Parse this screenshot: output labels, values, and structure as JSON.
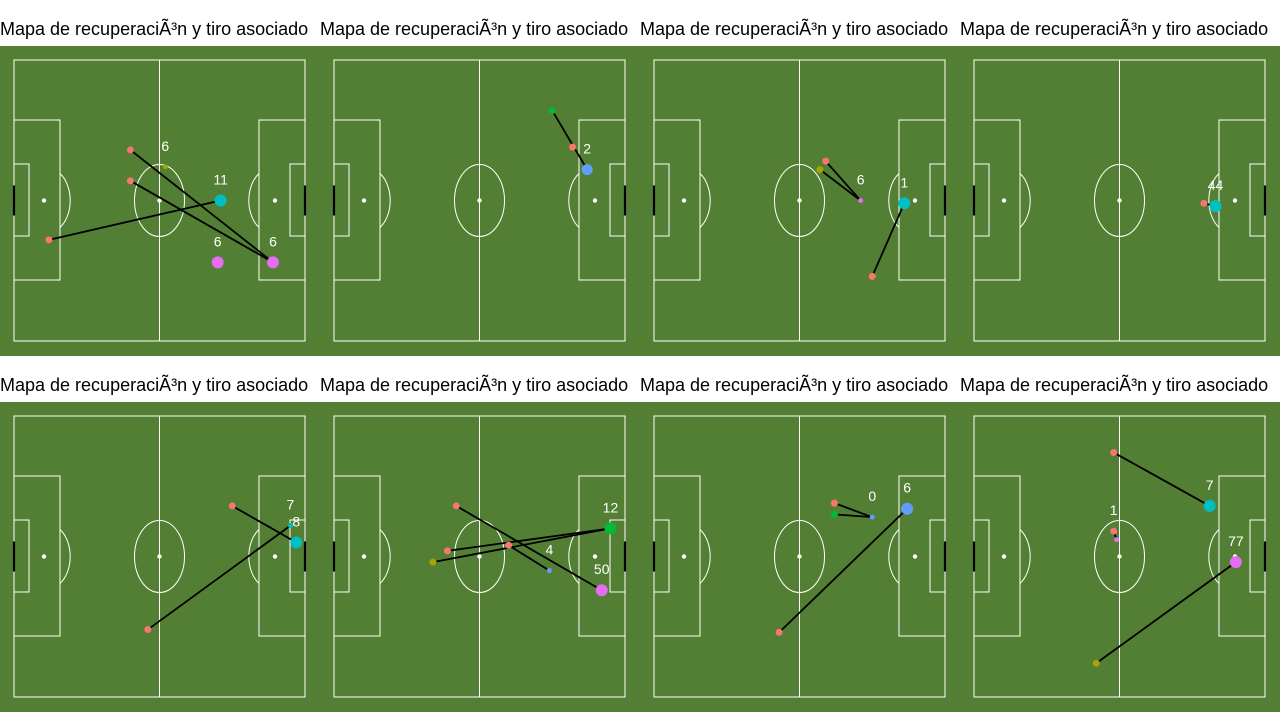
{
  "colors": {
    "pitch": "#537f34",
    "lines": "#ffffff",
    "link": "#000000",
    "recovery": "#f8766d",
    "olive": "#a3a500",
    "green": "#00ba38",
    "teal": "#00bfc4",
    "blue": "#619cff",
    "purple": "#e76bf3"
  },
  "chart_data": [
    {
      "type": "scatter",
      "title": "Mapa de recuperaciÃ³n y tiro asociado",
      "xlim": [
        0,
        100
      ],
      "ylim": [
        0,
        100
      ],
      "points": [
        {
          "x": 40,
          "y": 68,
          "color": "recovery",
          "size": 4,
          "label": ""
        },
        {
          "x": 40,
          "y": 57,
          "color": "recovery",
          "size": 4,
          "label": ""
        },
        {
          "x": 12,
          "y": 36,
          "color": "recovery",
          "size": 4,
          "label": ""
        },
        {
          "x": 71,
          "y": 50,
          "color": "teal",
          "size": 9,
          "label": "11"
        },
        {
          "x": 89,
          "y": 28,
          "color": "purple",
          "size": 9,
          "label": "6"
        },
        {
          "x": 70,
          "y": 28,
          "color": "purple",
          "size": 9,
          "label": "6"
        },
        {
          "x": 52,
          "y": 62,
          "color": "olive",
          "size": 2,
          "label": "6"
        }
      ],
      "links": [
        [
          0,
          4
        ],
        [
          1,
          4
        ],
        [
          2,
          3
        ]
      ]
    },
    {
      "type": "scatter",
      "title": "Mapa de recuperaciÃ³n y tiro asociado",
      "xlim": [
        0,
        100
      ],
      "ylim": [
        0,
        100
      ],
      "points": [
        {
          "x": 75,
          "y": 82,
          "color": "green",
          "size": 4,
          "label": ""
        },
        {
          "x": 82,
          "y": 69,
          "color": "recovery",
          "size": 4,
          "label": ""
        },
        {
          "x": 87,
          "y": 61,
          "color": "blue",
          "size": 8,
          "label": "2"
        }
      ],
      "links": [
        [
          0,
          2
        ]
      ]
    },
    {
      "type": "scatter",
      "title": "Mapa de recuperaciÃ³n y tiro asociado",
      "xlim": [
        0,
        100
      ],
      "ylim": [
        0,
        100
      ],
      "points": [
        {
          "x": 59,
          "y": 64,
          "color": "recovery",
          "size": 4,
          "label": ""
        },
        {
          "x": 57,
          "y": 61,
          "color": "olive",
          "size": 4,
          "label": ""
        },
        {
          "x": 71,
          "y": 50,
          "color": "purple",
          "size": 2,
          "label": "6"
        },
        {
          "x": 75,
          "y": 23,
          "color": "recovery",
          "size": 4,
          "label": ""
        },
        {
          "x": 86,
          "y": 49,
          "color": "teal",
          "size": 9,
          "label": "1"
        }
      ],
      "links": [
        [
          0,
          2
        ],
        [
          1,
          2
        ],
        [
          3,
          4
        ]
      ]
    },
    {
      "type": "scatter",
      "title": "Mapa de recuperaciÃ³n y tiro asociado",
      "xlim": [
        0,
        100
      ],
      "ylim": [
        0,
        100
      ],
      "points": [
        {
          "x": 79,
          "y": 49,
          "color": "recovery",
          "size": 4,
          "label": ""
        },
        {
          "x": 83,
          "y": 48,
          "color": "teal",
          "size": 9,
          "label": "44"
        }
      ],
      "links": [
        [
          0,
          1
        ]
      ]
    },
    {
      "type": "scatter",
      "title": "Mapa de recuperaciÃ³n y tiro asociado",
      "xlim": [
        0,
        100
      ],
      "ylim": [
        0,
        100
      ],
      "points": [
        {
          "x": 75,
          "y": 68,
          "color": "recovery",
          "size": 4,
          "label": ""
        },
        {
          "x": 46,
          "y": 24,
          "color": "recovery",
          "size": 4,
          "label": ""
        },
        {
          "x": 97,
          "y": 55,
          "color": "teal",
          "size": 9,
          "label": "8"
        },
        {
          "x": 95,
          "y": 61,
          "color": "teal",
          "size": 2,
          "label": "7"
        }
      ],
      "links": [
        [
          0,
          2
        ],
        [
          1,
          3
        ]
      ]
    },
    {
      "type": "scatter",
      "title": "Mapa de recuperaciÃ³n y tiro asociado",
      "xlim": [
        0,
        100
      ],
      "ylim": [
        0,
        100
      ],
      "points": [
        {
          "x": 42,
          "y": 68,
          "color": "recovery",
          "size": 4,
          "label": ""
        },
        {
          "x": 60,
          "y": 54,
          "color": "recovery",
          "size": 4,
          "label": ""
        },
        {
          "x": 39,
          "y": 52,
          "color": "recovery",
          "size": 4,
          "label": ""
        },
        {
          "x": 34,
          "y": 48,
          "color": "olive",
          "size": 4,
          "label": ""
        },
        {
          "x": 95,
          "y": 60,
          "color": "green",
          "size": 9,
          "label": "12"
        },
        {
          "x": 92,
          "y": 38,
          "color": "purple",
          "size": 9,
          "label": "50"
        },
        {
          "x": 74,
          "y": 45,
          "color": "blue",
          "size": 2,
          "label": "4"
        }
      ],
      "links": [
        [
          0,
          5
        ],
        [
          1,
          6
        ],
        [
          2,
          4
        ],
        [
          3,
          4
        ]
      ]
    },
    {
      "type": "scatter",
      "title": "Mapa de recuperaciÃ³n y tiro asociado",
      "xlim": [
        0,
        100
      ],
      "ylim": [
        0,
        100
      ],
      "points": [
        {
          "x": 62,
          "y": 69,
          "color": "recovery",
          "size": 4,
          "label": ""
        },
        {
          "x": 62,
          "y": 65,
          "color": "green",
          "size": 4,
          "label": ""
        },
        {
          "x": 75,
          "y": 64,
          "color": "blue",
          "size": 2,
          "label": "0"
        },
        {
          "x": 43,
          "y": 23,
          "color": "recovery",
          "size": 4,
          "label": ""
        },
        {
          "x": 87,
          "y": 67,
          "color": "blue",
          "size": 9,
          "label": "6"
        }
      ],
      "links": [
        [
          0,
          2
        ],
        [
          1,
          2
        ],
        [
          3,
          4
        ]
      ]
    },
    {
      "type": "scatter",
      "title": "Mapa de recuperaciÃ³n y tiro asociado",
      "xlim": [
        0,
        100
      ],
      "ylim": [
        0,
        100
      ],
      "points": [
        {
          "x": 48,
          "y": 59,
          "color": "recovery",
          "size": 4,
          "label": "1"
        },
        {
          "x": 49,
          "y": 56,
          "color": "purple",
          "size": 2,
          "label": ""
        },
        {
          "x": 48,
          "y": 87,
          "color": "recovery",
          "size": 4,
          "label": ""
        },
        {
          "x": 81,
          "y": 68,
          "color": "teal",
          "size": 9,
          "label": "7"
        },
        {
          "x": 42,
          "y": 12,
          "color": "olive",
          "size": 4,
          "label": ""
        },
        {
          "x": 90,
          "y": 48,
          "color": "purple",
          "size": 9,
          "label": "77"
        }
      ],
      "links": [
        [
          0,
          1
        ],
        [
          2,
          3
        ],
        [
          4,
          5
        ]
      ]
    }
  ]
}
